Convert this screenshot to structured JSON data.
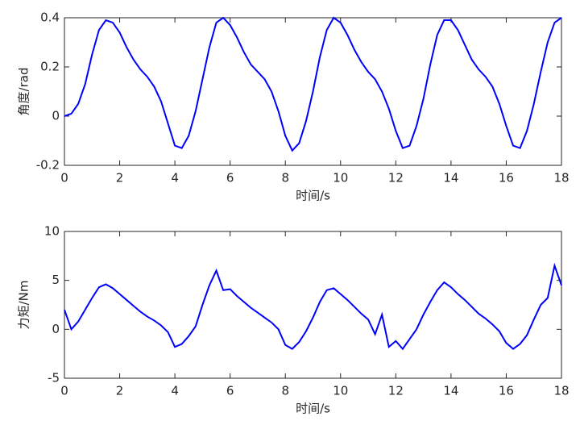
{
  "chart_data": [
    {
      "type": "line",
      "xlabel": "时间/s",
      "ylabel": "角度/rad",
      "color": "#0000ff",
      "x": [
        0,
        0.25,
        0.5,
        0.75,
        1,
        1.25,
        1.5,
        1.75,
        2,
        2.25,
        2.5,
        2.75,
        3,
        3.25,
        3.5,
        3.75,
        4,
        4.25,
        4.5,
        4.75,
        5,
        5.25,
        5.5,
        5.75,
        6,
        6.25,
        6.5,
        6.75,
        7,
        7.25,
        7.5,
        7.75,
        8,
        8.25,
        8.5,
        8.75,
        9,
        9.25,
        9.5,
        9.75,
        10,
        10.25,
        10.5,
        10.75,
        11,
        11.25,
        11.5,
        11.75,
        12,
        12.25,
        12.5,
        12.75,
        13,
        13.25,
        13.5,
        13.75,
        14,
        14.25,
        14.5,
        14.75,
        15,
        15.25,
        15.5,
        15.75,
        16,
        16.25,
        16.5,
        16.75,
        17,
        17.25,
        17.5,
        17.75,
        18
      ],
      "values": [
        0,
        0.01,
        0.05,
        0.13,
        0.25,
        0.35,
        0.39,
        0.38,
        0.34,
        0.28,
        0.23,
        0.19,
        0.16,
        0.12,
        0.06,
        -0.03,
        -0.12,
        -0.13,
        -0.08,
        0.02,
        0.15,
        0.28,
        0.38,
        0.4,
        0.37,
        0.32,
        0.26,
        0.21,
        0.18,
        0.15,
        0.1,
        0.02,
        -0.08,
        -0.14,
        -0.11,
        -0.02,
        0.1,
        0.24,
        0.35,
        0.4,
        0.38,
        0.33,
        0.27,
        0.22,
        0.18,
        0.15,
        0.1,
        0.03,
        -0.06,
        -0.13,
        -0.12,
        -0.04,
        0.07,
        0.21,
        0.33,
        0.39,
        0.39,
        0.35,
        0.29,
        0.23,
        0.19,
        0.16,
        0.12,
        0.05,
        -0.04,
        -0.12,
        -0.13,
        -0.06,
        0.05,
        0.18,
        0.3,
        0.38,
        0.4
      ],
      "xlim": [
        0,
        18
      ],
      "xticks": [
        0,
        2,
        4,
        6,
        8,
        10,
        12,
        14,
        16,
        18
      ],
      "ylim": [
        -0.2,
        0.4
      ],
      "yticks": [
        -0.2,
        0,
        0.2,
        0.4
      ]
    },
    {
      "type": "line",
      "xlabel": "时间/s",
      "ylabel": "力矩/Nm",
      "color": "#0000ff",
      "x": [
        0,
        0.25,
        0.5,
        0.75,
        1,
        1.25,
        1.5,
        1.75,
        2,
        2.25,
        2.5,
        2.75,
        3,
        3.25,
        3.5,
        3.75,
        4,
        4.25,
        4.5,
        4.75,
        5,
        5.25,
        5.5,
        5.75,
        6,
        6.25,
        6.5,
        6.75,
        7,
        7.25,
        7.5,
        7.75,
        8,
        8.25,
        8.5,
        8.75,
        9,
        9.25,
        9.5,
        9.75,
        10,
        10.25,
        10.5,
        10.75,
        11,
        11.25,
        11.5,
        11.75,
        12,
        12.25,
        12.5,
        12.75,
        13,
        13.25,
        13.5,
        13.75,
        14,
        14.25,
        14.5,
        14.75,
        15,
        15.25,
        15.5,
        15.75,
        16,
        16.25,
        16.5,
        16.75,
        17,
        17.25,
        17.5,
        17.75,
        18
      ],
      "values": [
        2,
        0,
        0.8,
        2,
        3.2,
        4.3,
        4.6,
        4.2,
        3.6,
        3,
        2.4,
        1.8,
        1.3,
        0.9,
        0.4,
        -0.3,
        -1.8,
        -1.5,
        -0.7,
        0.3,
        2.5,
        4.5,
        6,
        4,
        4.1,
        3.4,
        2.8,
        2.2,
        1.7,
        1.2,
        0.7,
        0,
        -1.6,
        -2,
        -1.3,
        -0.2,
        1.2,
        2.8,
        4,
        4.2,
        3.6,
        3,
        2.3,
        1.6,
        1,
        -0.5,
        1.5,
        -1.8,
        -1.2,
        -2,
        -1,
        0,
        1.5,
        2.8,
        4,
        4.8,
        4.3,
        3.6,
        3,
        2.3,
        1.6,
        1.1,
        0.5,
        -0.2,
        -1.4,
        -2,
        -1.5,
        -0.6,
        1,
        2.5,
        3.2,
        6.5,
        4.5
      ],
      "xlim": [
        0,
        18
      ],
      "xticks": [
        0,
        2,
        4,
        6,
        8,
        10,
        12,
        14,
        16,
        18
      ],
      "ylim": [
        -5,
        10
      ],
      "yticks": [
        -5,
        0,
        5,
        10
      ]
    }
  ]
}
